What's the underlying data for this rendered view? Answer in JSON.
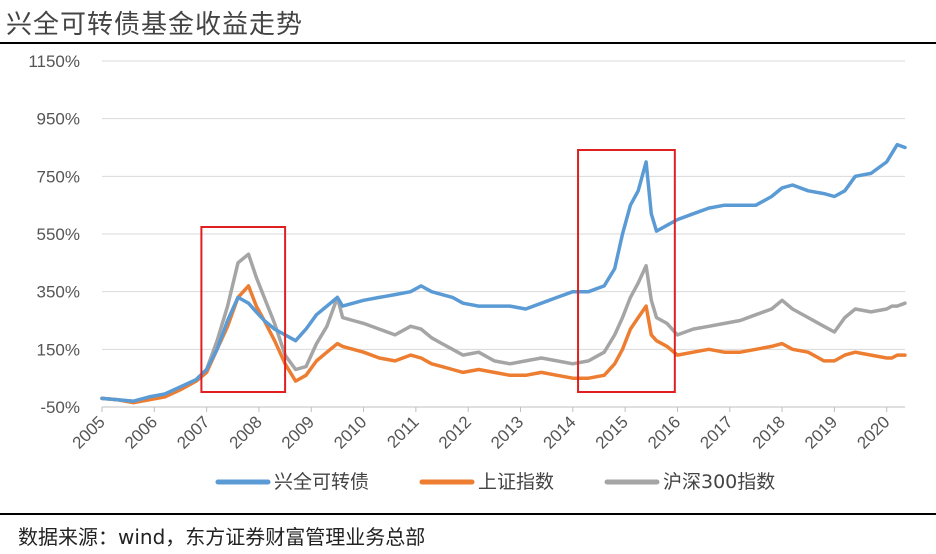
{
  "header": {
    "title": "兴全可转债基金收益走势"
  },
  "footer": {
    "source": "数据来源：wind，东方证券财富管理业务总部"
  },
  "colors": {
    "bond_fund": "#5b9bd5",
    "sse": "#ed7d31",
    "csi300": "#a5a5a5",
    "highlight": "#e02020",
    "grid": "#d9d9d9"
  },
  "chart_data": {
    "type": "line",
    "title": "兴全可转债基金收益走势",
    "xlabel": "",
    "ylabel": "",
    "ylim": [
      -50,
      1150
    ],
    "y_ticks": [
      -50,
      150,
      350,
      550,
      750,
      950,
      1150
    ],
    "y_tick_labels": [
      "-50%",
      "150%",
      "350%",
      "550%",
      "750%",
      "950%",
      "1150%"
    ],
    "x_ticks": [
      2005,
      2006,
      2007,
      2008,
      2009,
      2010,
      2011,
      2012,
      2013,
      2014,
      2015,
      2016,
      2017,
      2018,
      2019,
      2020
    ],
    "x_tick_labels": [
      "2005",
      "2006",
      "2007",
      "2008",
      "2009",
      "2010",
      "2011",
      "2012",
      "2013",
      "2014",
      "2015",
      "2016",
      "2017",
      "2018",
      "2019",
      "2020"
    ],
    "xlim": [
      2005.0,
      2020.35
    ],
    "grid": true,
    "legend_position": "bottom",
    "highlight_ranges": [
      [
        2006.9,
        2008.5
      ],
      [
        2014.1,
        2015.95
      ]
    ],
    "series": [
      {
        "name": "兴全可转债",
        "x": [
          2005.0,
          2005.3,
          2005.6,
          2005.9,
          2006.2,
          2006.5,
          2006.8,
          2007.0,
          2007.2,
          2007.4,
          2007.6,
          2007.8,
          2007.95,
          2008.1,
          2008.3,
          2008.5,
          2008.7,
          2008.9,
          2009.1,
          2009.3,
          2009.5,
          2009.6,
          2009.8,
          2010.0,
          2010.3,
          2010.6,
          2010.9,
          2011.1,
          2011.3,
          2011.5,
          2011.7,
          2011.9,
          2012.2,
          2012.5,
          2012.8,
          2013.1,
          2013.4,
          2013.7,
          2014.0,
          2014.3,
          2014.6,
          2014.8,
          2014.95,
          2015.1,
          2015.25,
          2015.4,
          2015.5,
          2015.6,
          2015.8,
          2016.0,
          2016.3,
          2016.6,
          2016.9,
          2017.2,
          2017.5,
          2017.8,
          2018.0,
          2018.2,
          2018.5,
          2018.8,
          2019.0,
          2019.2,
          2019.4,
          2019.7,
          2020.0,
          2020.1,
          2020.2,
          2020.35
        ],
        "values": [
          -20,
          -25,
          -30,
          -15,
          -5,
          20,
          45,
          80,
          150,
          250,
          330,
          310,
          280,
          250,
          220,
          200,
          180,
          220,
          270,
          300,
          330,
          300,
          310,
          320,
          330,
          340,
          350,
          370,
          350,
          340,
          330,
          310,
          300,
          300,
          300,
          290,
          310,
          330,
          350,
          350,
          370,
          430,
          550,
          650,
          700,
          800,
          620,
          560,
          580,
          600,
          620,
          640,
          650,
          650,
          650,
          680,
          710,
          720,
          700,
          690,
          680,
          700,
          750,
          760,
          800,
          830,
          860,
          850
        ]
      },
      {
        "name": "上证指数",
        "x": [
          2005.0,
          2005.3,
          2005.6,
          2005.9,
          2006.2,
          2006.5,
          2006.8,
          2007.0,
          2007.2,
          2007.4,
          2007.6,
          2007.8,
          2007.95,
          2008.1,
          2008.3,
          2008.5,
          2008.7,
          2008.9,
          2009.1,
          2009.3,
          2009.5,
          2009.6,
          2009.8,
          2010.0,
          2010.3,
          2010.6,
          2010.9,
          2011.1,
          2011.3,
          2011.5,
          2011.7,
          2011.9,
          2012.2,
          2012.5,
          2012.8,
          2013.1,
          2013.4,
          2013.7,
          2014.0,
          2014.3,
          2014.6,
          2014.8,
          2014.95,
          2015.1,
          2015.25,
          2015.4,
          2015.5,
          2015.6,
          2015.8,
          2016.0,
          2016.3,
          2016.6,
          2016.9,
          2017.2,
          2017.5,
          2017.8,
          2018.0,
          2018.2,
          2018.5,
          2018.8,
          2019.0,
          2019.2,
          2019.4,
          2019.7,
          2020.0,
          2020.1,
          2020.2,
          2020.35
        ],
        "values": [
          -20,
          -25,
          -35,
          -25,
          -15,
          10,
          40,
          70,
          150,
          230,
          330,
          370,
          300,
          250,
          180,
          100,
          40,
          60,
          110,
          140,
          170,
          160,
          150,
          140,
          120,
          110,
          130,
          120,
          100,
          90,
          80,
          70,
          80,
          70,
          60,
          60,
          70,
          60,
          50,
          50,
          60,
          100,
          150,
          220,
          260,
          300,
          200,
          180,
          160,
          130,
          140,
          150,
          140,
          140,
          150,
          160,
          170,
          150,
          140,
          110,
          110,
          130,
          140,
          130,
          120,
          120,
          130,
          130
        ]
      },
      {
        "name": "沪深300指数",
        "x": [
          2005.0,
          2005.3,
          2005.6,
          2005.9,
          2006.2,
          2006.5,
          2006.8,
          2007.0,
          2007.2,
          2007.4,
          2007.6,
          2007.8,
          2007.95,
          2008.1,
          2008.3,
          2008.5,
          2008.7,
          2008.9,
          2009.1,
          2009.3,
          2009.5,
          2009.6,
          2009.8,
          2010.0,
          2010.3,
          2010.6,
          2010.9,
          2011.1,
          2011.3,
          2011.5,
          2011.7,
          2011.9,
          2012.2,
          2012.5,
          2012.8,
          2013.1,
          2013.4,
          2013.7,
          2014.0,
          2014.3,
          2014.6,
          2014.8,
          2014.95,
          2015.1,
          2015.25,
          2015.4,
          2015.5,
          2015.6,
          2015.8,
          2016.0,
          2016.3,
          2016.6,
          2016.9,
          2017.2,
          2017.5,
          2017.8,
          2018.0,
          2018.2,
          2018.5,
          2018.8,
          2019.0,
          2019.2,
          2019.4,
          2019.7,
          2020.0,
          2020.1,
          2020.2,
          2020.35
        ],
        "values": [
          -20,
          -25,
          -30,
          -20,
          -10,
          15,
          45,
          80,
          180,
          300,
          450,
          480,
          400,
          330,
          240,
          130,
          80,
          90,
          170,
          230,
          330,
          260,
          250,
          240,
          220,
          200,
          230,
          220,
          190,
          170,
          150,
          130,
          140,
          110,
          100,
          110,
          120,
          110,
          100,
          110,
          140,
          200,
          260,
          330,
          380,
          440,
          320,
          260,
          240,
          200,
          220,
          230,
          240,
          250,
          270,
          290,
          320,
          290,
          260,
          230,
          210,
          260,
          290,
          280,
          290,
          300,
          300,
          310
        ]
      }
    ]
  }
}
